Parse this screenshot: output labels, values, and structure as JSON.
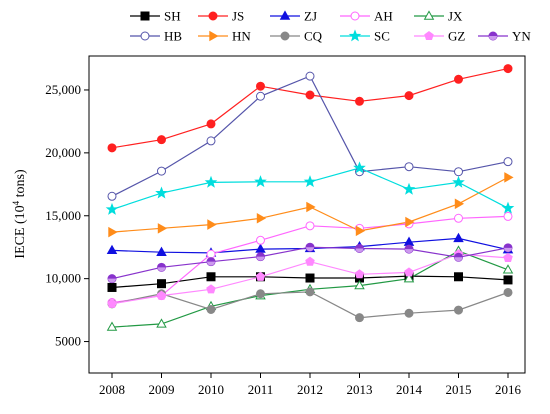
{
  "chart_data": {
    "type": "line",
    "title": "",
    "xlabel": "",
    "ylabel": "IECE (10⁴ tons)",
    "ylabel_main": "IECE (10",
    "ylabel_sup": "4",
    "ylabel_tail": " tons)",
    "x": [
      2008,
      2009,
      2010,
      2011,
      2012,
      2013,
      2014,
      2015,
      2016
    ],
    "ylim": [
      2500,
      27700
    ],
    "yticks": [
      5000,
      10000,
      15000,
      20000,
      25000
    ],
    "ytick_labels": [
      "5000",
      "10,000",
      "15,000",
      "20,000",
      "25,000"
    ],
    "xtick_labels": [
      "2008",
      "2009",
      "2010",
      "2011",
      "2012",
      "2013",
      "2014",
      "2015",
      "2016"
    ],
    "grid": false,
    "legend_position": "top",
    "series": [
      {
        "name": "SH",
        "color": "#000000",
        "marker": "square",
        "filled": true,
        "values": [
          9300,
          9600,
          10150,
          10150,
          10050,
          10050,
          10200,
          10150,
          9900
        ]
      },
      {
        "name": "JS",
        "color": "#ff2020",
        "marker": "circle",
        "filled": true,
        "values": [
          20400,
          21050,
          22300,
          25300,
          24600,
          24100,
          24550,
          25850,
          26700
        ]
      },
      {
        "name": "ZJ",
        "color": "#1010e0",
        "marker": "triangle",
        "filled": true,
        "values": [
          12250,
          12100,
          12050,
          12350,
          12400,
          12550,
          12900,
          13200,
          12300
        ]
      },
      {
        "name": "AH",
        "color": "#ff66ff",
        "marker": "circle",
        "filled": false,
        "values": [
          8100,
          8650,
          11950,
          13050,
          14200,
          14000,
          14350,
          14800,
          14950
        ]
      },
      {
        "name": "JX",
        "color": "#229944",
        "marker": "triangle",
        "filled": false,
        "values": [
          6150,
          6400,
          7800,
          8650,
          9150,
          9450,
          10000,
          12200,
          10700
        ]
      },
      {
        "name": "HB",
        "color": "#5555aa",
        "marker": "circle",
        "filled": false,
        "values": [
          16550,
          18550,
          20950,
          24500,
          26100,
          18500,
          18900,
          18500,
          19300
        ]
      },
      {
        "name": "HN",
        "color": "#ff8c1a",
        "marker": "triangle-right",
        "filled": true,
        "values": [
          13700,
          14000,
          14300,
          14800,
          15700,
          13800,
          14500,
          15950,
          18050
        ]
      },
      {
        "name": "CQ",
        "color": "#888888",
        "marker": "circle",
        "filled": true,
        "values": [
          8000,
          8800,
          7550,
          8800,
          8950,
          6900,
          7250,
          7500,
          8900
        ]
      },
      {
        "name": "SC",
        "color": "#00dddd",
        "marker": "star",
        "filled": true,
        "values": [
          15500,
          16800,
          17650,
          17700,
          17700,
          18800,
          17100,
          17650,
          15600
        ]
      },
      {
        "name": "GZ",
        "color": "#ff88ff",
        "marker": "pentagon",
        "filled": true,
        "values": [
          8000,
          8650,
          9150,
          10150,
          11350,
          10350,
          10500,
          11950,
          11650
        ]
      },
      {
        "name": "YN",
        "color": "#8833cc",
        "marker": "circle-half",
        "filled": true,
        "values": [
          10000,
          10900,
          11350,
          11750,
          12500,
          12400,
          12350,
          11700,
          12450
        ]
      }
    ]
  }
}
